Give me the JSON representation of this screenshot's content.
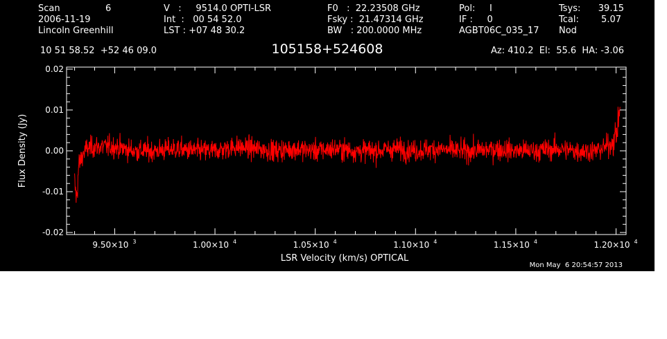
{
  "header": {
    "col1": {
      "scan_label": "Scan",
      "scan_value": "6",
      "date": "2006-11-19",
      "observer": "Lincoln Greenhill"
    },
    "col2": {
      "v_line": "V   :     9514.0 OPTI-LSR",
      "int_line": "Int  :   00 54 52.0",
      "lst_line": "LST : +07 48 30.2"
    },
    "col3": {
      "f0_line": "F0   :  22.23508 GHz",
      "fsky_line": "Fsky :  21.47314 GHz",
      "bw_line": "BW   : 200.0000 MHz"
    },
    "col4": {
      "pol_line": "Pol:     I",
      "if_line": "IF :     0",
      "project": "AGBT06C_035_17"
    },
    "col5": {
      "tsys_label": "Tsys:",
      "tsys_value": "39.15",
      "tcal_label": "Tcal:",
      "tcal_value": "5.07",
      "mode": "Nod"
    },
    "coords": "10 51 58.52  +52 46 09.0",
    "az_el_ha": "Az: 410.2  El:  55.6  HA: -3.06"
  },
  "timestamp": "Mon May  6 20:54:57 2013",
  "colors": {
    "background": "#000000",
    "axes": "#ffffff",
    "trace": "#ff0000"
  },
  "chart_data": {
    "type": "line",
    "title": "105158+524608",
    "xlabel": "LSR Velocity (km/s) OPTICAL",
    "ylabel": "Flux Density (Jy)",
    "xlim": [
      9260,
      12050
    ],
    "ylim": [
      -0.0205,
      0.0205
    ],
    "grid": false,
    "x_ticks": [
      {
        "value": 9500,
        "label": "9.50×10",
        "exp": "3"
      },
      {
        "value": 10000,
        "label": "1.00×10",
        "exp": "4"
      },
      {
        "value": 10500,
        "label": "1.05×10",
        "exp": "4"
      },
      {
        "value": 11000,
        "label": "1.10×10",
        "exp": "4"
      },
      {
        "value": 11500,
        "label": "1.15×10",
        "exp": "4"
      },
      {
        "value": 12000,
        "label": "1.20×10",
        "exp": "4"
      }
    ],
    "y_ticks": [
      {
        "value": 0.02,
        "label": "0.02"
      },
      {
        "value": 0.01,
        "label": "0.01"
      },
      {
        "value": 0.0,
        "label": "0.00"
      },
      {
        "value": -0.01,
        "label": "-0.01"
      },
      {
        "value": -0.02,
        "label": "-0.02"
      }
    ],
    "series": [
      {
        "x": [
          9300,
          9310,
          9320,
          9340,
          9360,
          9400,
          9500,
          9600,
          9700,
          9800,
          9900,
          10000,
          10100,
          10200,
          10300,
          10400,
          10500,
          10600,
          10700,
          10800,
          10900,
          11000,
          11100,
          11200,
          11300,
          11400,
          11500,
          11600,
          11700,
          11800,
          11900,
          11950,
          11980,
          12000,
          12010,
          12020
        ],
        "y": [
          -0.008,
          -0.012,
          -0.004,
          -0.001,
          0.0005,
          0.001,
          0.001,
          0.0,
          0.0,
          0.0005,
          0.0,
          0.0,
          0.001,
          0.0005,
          0.0,
          0.0005,
          0.0,
          0.0005,
          0.0,
          0.0,
          0.0005,
          0.0,
          0.0005,
          0.0,
          0.0,
          0.0005,
          0.0,
          0.0,
          0.0005,
          0.0,
          0.0,
          0.001,
          0.002,
          0.004,
          0.006,
          0.012
        ],
        "noise_rms": 0.0022
      }
    ]
  }
}
